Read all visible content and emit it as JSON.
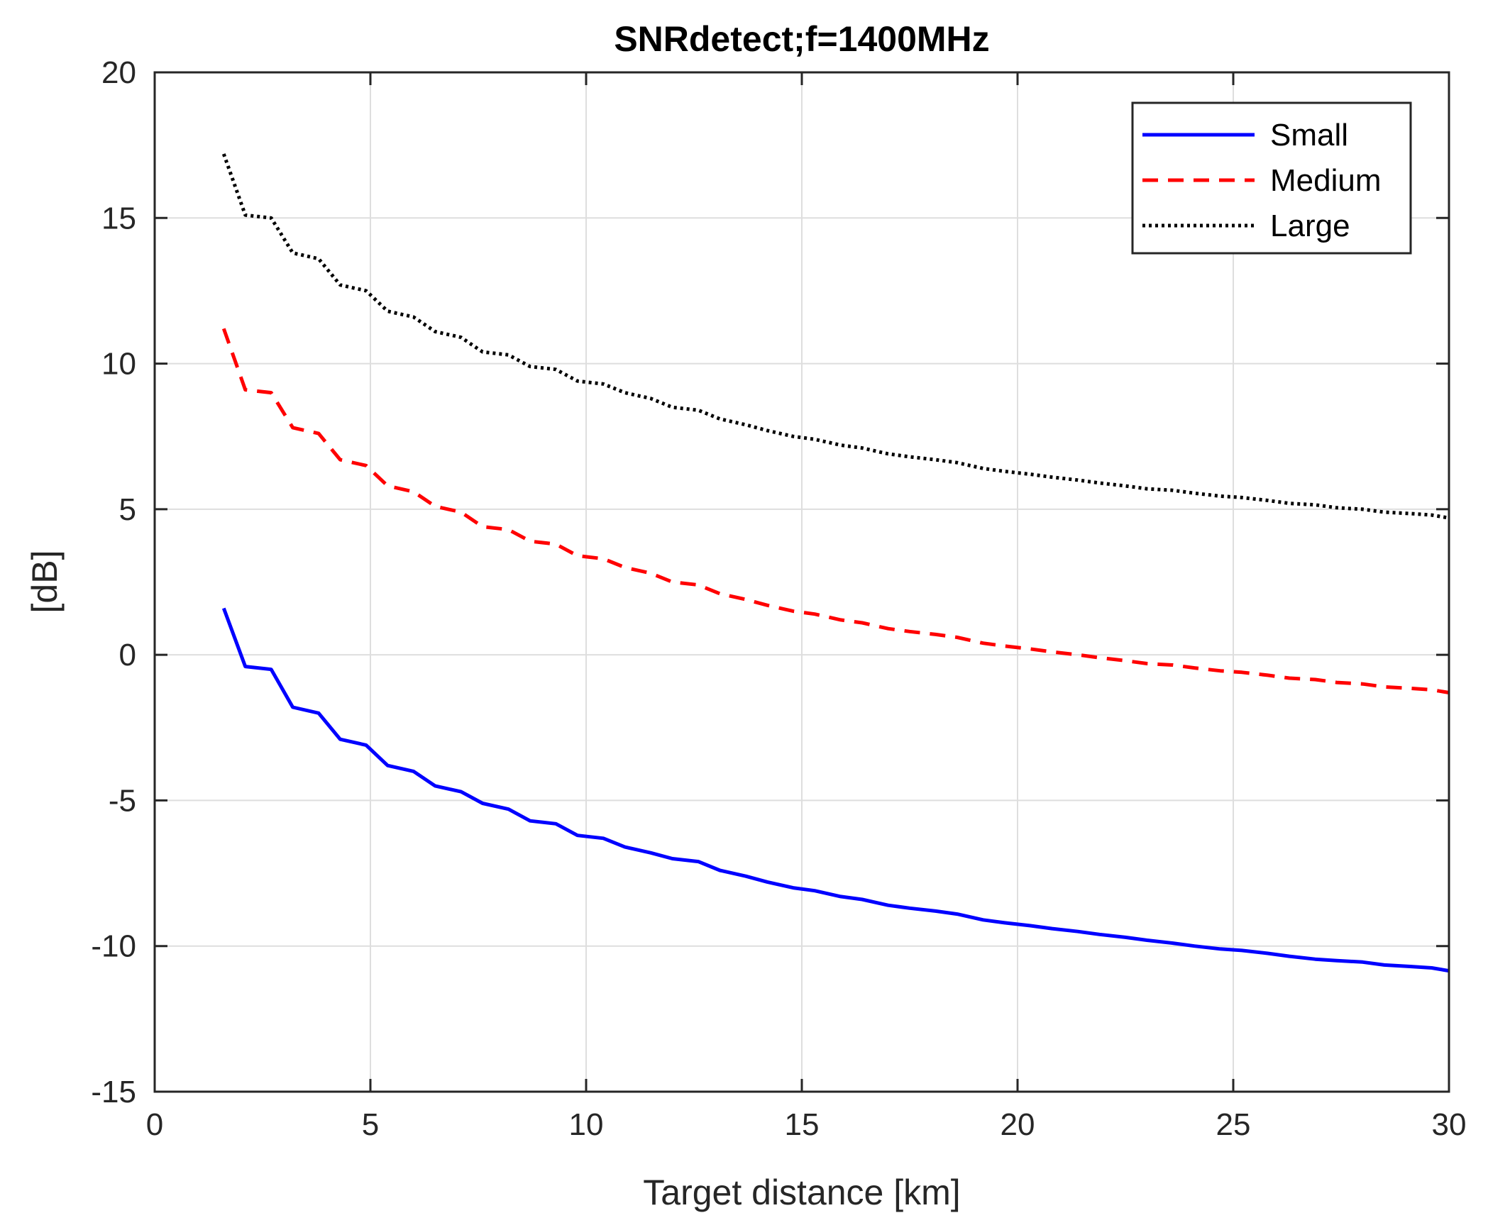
{
  "chart_data": {
    "type": "line",
    "title": "SNRdetect;f=1400MHz",
    "xlabel": "Target distance [km]",
    "ylabel": "[dB]",
    "xlim": [
      0,
      30
    ],
    "ylim": [
      -15,
      20
    ],
    "xticks": [
      0,
      5,
      10,
      15,
      20,
      25,
      30
    ],
    "yticks": [
      -15,
      -10,
      -5,
      0,
      5,
      10,
      15,
      20
    ],
    "grid": true,
    "legend_position": "top-right",
    "series": [
      {
        "name": "Small",
        "color": "#0000ff",
        "dash": "solid",
        "x": [
          1.6,
          2.1,
          2.7,
          3.2,
          3.8,
          4.3,
          4.9,
          5.4,
          6.0,
          6.5,
          7.1,
          7.6,
          8.2,
          8.7,
          9.3,
          9.8,
          10.4,
          10.9,
          11.5,
          12.0,
          12.6,
          13.1,
          13.7,
          14.2,
          14.8,
          15.3,
          15.9,
          16.4,
          17.0,
          17.5,
          18.1,
          18.6,
          19.2,
          19.7,
          20.3,
          20.8,
          21.4,
          21.9,
          22.5,
          23.0,
          23.6,
          24.1,
          24.7,
          25.2,
          25.8,
          26.3,
          26.9,
          27.4,
          28.0,
          28.5,
          29.1,
          29.6,
          30.0
        ],
        "y": [
          1.6,
          -0.4,
          -0.5,
          -1.8,
          -2.0,
          -2.9,
          -3.1,
          -3.8,
          -4.0,
          -4.5,
          -4.7,
          -5.1,
          -5.3,
          -5.7,
          -5.8,
          -6.2,
          -6.3,
          -6.6,
          -6.8,
          -7.0,
          -7.1,
          -7.4,
          -7.6,
          -7.8,
          -8.0,
          -8.1,
          -8.3,
          -8.4,
          -8.6,
          -8.7,
          -8.8,
          -8.9,
          -9.1,
          -9.2,
          -9.3,
          -9.4,
          -9.5,
          -9.6,
          -9.7,
          -9.8,
          -9.9,
          -10.0,
          -10.1,
          -10.15,
          -10.25,
          -10.35,
          -10.45,
          -10.5,
          -10.55,
          -10.65,
          -10.7,
          -10.75,
          -10.85
        ]
      },
      {
        "name": "Medium",
        "color": "#ff0000",
        "dash": "dashed",
        "x": [
          1.6,
          2.1,
          2.7,
          3.2,
          3.8,
          4.3,
          4.9,
          5.4,
          6.0,
          6.5,
          7.1,
          7.6,
          8.2,
          8.7,
          9.3,
          9.8,
          10.4,
          10.9,
          11.5,
          12.0,
          12.6,
          13.1,
          13.7,
          14.2,
          14.8,
          15.3,
          15.9,
          16.4,
          17.0,
          17.5,
          18.1,
          18.6,
          19.2,
          19.7,
          20.3,
          20.8,
          21.4,
          21.9,
          22.5,
          23.0,
          23.6,
          24.1,
          24.7,
          25.2,
          25.8,
          26.3,
          26.9,
          27.4,
          28.0,
          28.5,
          29.1,
          29.6,
          30.0
        ],
        "y": [
          11.2,
          9.1,
          9.0,
          7.8,
          7.6,
          6.7,
          6.5,
          5.8,
          5.6,
          5.1,
          4.9,
          4.4,
          4.3,
          3.9,
          3.8,
          3.4,
          3.3,
          3.0,
          2.8,
          2.5,
          2.4,
          2.1,
          1.9,
          1.7,
          1.5,
          1.4,
          1.2,
          1.1,
          0.9,
          0.8,
          0.7,
          0.6,
          0.4,
          0.3,
          0.2,
          0.1,
          0.0,
          -0.1,
          -0.2,
          -0.3,
          -0.35,
          -0.45,
          -0.55,
          -0.6,
          -0.7,
          -0.8,
          -0.85,
          -0.95,
          -1.0,
          -1.1,
          -1.15,
          -1.2,
          -1.3
        ]
      },
      {
        "name": "Large",
        "color": "#000000",
        "dash": "dotted",
        "x": [
          1.6,
          2.1,
          2.7,
          3.2,
          3.8,
          4.3,
          4.9,
          5.4,
          6.0,
          6.5,
          7.1,
          7.6,
          8.2,
          8.7,
          9.3,
          9.8,
          10.4,
          10.9,
          11.5,
          12.0,
          12.6,
          13.1,
          13.7,
          14.2,
          14.8,
          15.3,
          15.9,
          16.4,
          17.0,
          17.5,
          18.1,
          18.6,
          19.2,
          19.7,
          20.3,
          20.8,
          21.4,
          21.9,
          22.5,
          23.0,
          23.6,
          24.1,
          24.7,
          25.2,
          25.8,
          26.3,
          26.9,
          27.4,
          28.0,
          28.5,
          29.1,
          29.6,
          30.0
        ],
        "y": [
          17.2,
          15.1,
          15.0,
          13.8,
          13.6,
          12.7,
          12.5,
          11.8,
          11.6,
          11.1,
          10.9,
          10.4,
          10.3,
          9.9,
          9.8,
          9.4,
          9.3,
          9.0,
          8.8,
          8.5,
          8.4,
          8.1,
          7.9,
          7.7,
          7.5,
          7.4,
          7.2,
          7.1,
          6.9,
          6.8,
          6.7,
          6.6,
          6.4,
          6.3,
          6.2,
          6.1,
          6.0,
          5.9,
          5.8,
          5.7,
          5.65,
          5.55,
          5.45,
          5.4,
          5.3,
          5.2,
          5.15,
          5.05,
          5.0,
          4.9,
          4.85,
          4.8,
          4.7
        ]
      }
    ]
  }
}
